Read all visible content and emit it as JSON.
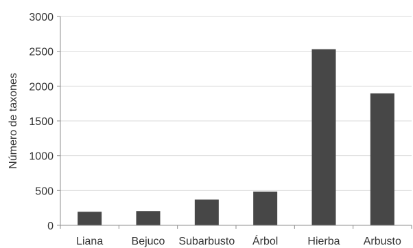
{
  "chart_data": {
    "type": "bar",
    "title": "",
    "xlabel": "",
    "ylabel": "Número de taxones",
    "categories": [
      "Liana",
      "Bejuco",
      "Subarbusto",
      "Árbol",
      "Hierba",
      "Arbusto"
    ],
    "values": [
      195,
      205,
      370,
      485,
      2530,
      1895
    ],
    "ylim": [
      0,
      3000
    ],
    "yticks": [
      0,
      500,
      1000,
      1500,
      2000,
      2500,
      3000
    ],
    "grid": true,
    "legend": "none",
    "colors": {
      "bar": "#474747",
      "grid": "#d9d9d9",
      "axis": "#8c8c8c",
      "text": "#333333"
    }
  }
}
